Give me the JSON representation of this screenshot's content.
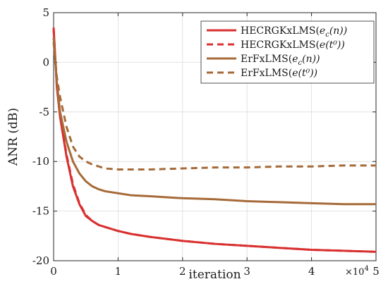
{
  "chart_data": {
    "type": "line",
    "title": "",
    "xlabel": "iteration",
    "ylabel": "ANR (dB)",
    "x_multiplier": "×10^4",
    "x_multiplier_base": "×10",
    "x_multiplier_exp": "4",
    "xlim": [
      0,
      5
    ],
    "ylim": [
      -20,
      5
    ],
    "xticks": [
      0,
      1,
      2,
      3,
      4,
      5
    ],
    "yticks": [
      -20,
      -15,
      -10,
      -5,
      0,
      5
    ],
    "xtick_labels": [
      "0",
      "1",
      "2",
      "3",
      "4",
      "5"
    ],
    "ytick_labels": [
      "-20",
      "-15",
      "-10",
      "-5",
      "0",
      "5"
    ],
    "grid": true,
    "legend_position": "top-right",
    "series": [
      {
        "name": "HECRGKxLMS(e_c(n))",
        "legend_base": "HECRGKxLMS(",
        "legend_math": "e",
        "legend_sub": "c",
        "legend_tail": "(n))",
        "color": "#d93030",
        "dash": "solid",
        "x": [
          0,
          0.05,
          0.1,
          0.2,
          0.3,
          0.4,
          0.5,
          0.6,
          0.7,
          0.8,
          1.0,
          1.2,
          1.5,
          2.0,
          2.5,
          3.0,
          3.5,
          4.0,
          4.5,
          5.0
        ],
        "y": [
          3.5,
          -2.5,
          -5.5,
          -9.5,
          -12.5,
          -14.3,
          -15.5,
          -16.0,
          -16.4,
          -16.6,
          -17.0,
          -17.3,
          -17.6,
          -18.0,
          -18.3,
          -18.5,
          -18.7,
          -18.9,
          -19.0,
          -19.1
        ]
      },
      {
        "name": "HECRGKxLMS(e(t^0))",
        "legend_base": "HECRGKxLMS(",
        "legend_math": "e",
        "legend_sub": "",
        "legend_tail": "(t⁰))",
        "color": "#d93030",
        "dash": "dashed",
        "x": [
          0,
          0.05,
          0.1,
          0.2,
          0.3,
          0.4,
          0.5,
          0.6,
          0.7,
          0.8,
          1.0,
          1.2,
          1.5,
          2.0,
          2.5,
          3.0,
          3.5,
          4.0,
          4.5,
          5.0
        ],
        "y": [
          3.3,
          -2.3,
          -5.3,
          -9.3,
          -12.3,
          -14.2,
          -15.4,
          -16.0,
          -16.4,
          -16.6,
          -17.0,
          -17.3,
          -17.6,
          -18.0,
          -18.3,
          -18.5,
          -18.7,
          -18.9,
          -19.0,
          -19.1
        ]
      },
      {
        "name": "ErFxLMS(e_c(n))",
        "legend_base": "ErFxLMS(",
        "legend_math": "e",
        "legend_sub": "c",
        "legend_tail": "(n))",
        "color": "#a66a38",
        "dash": "solid",
        "x": [
          0,
          0.05,
          0.1,
          0.2,
          0.3,
          0.4,
          0.5,
          0.6,
          0.7,
          0.8,
          1.0,
          1.2,
          1.5,
          2.0,
          2.5,
          3.0,
          3.5,
          4.0,
          4.5,
          5.0
        ],
        "y": [
          2.5,
          -2.0,
          -5.0,
          -8.0,
          -10.0,
          -11.2,
          -12.0,
          -12.5,
          -12.8,
          -13.0,
          -13.2,
          -13.4,
          -13.5,
          -13.7,
          -13.8,
          -14.0,
          -14.1,
          -14.2,
          -14.3,
          -14.3
        ]
      },
      {
        "name": "ErFxLMS(e(t^0))",
        "legend_base": "ErFxLMS(",
        "legend_math": "e",
        "legend_sub": "",
        "legend_tail": "(t⁰))",
        "color": "#a66a38",
        "dash": "dashed",
        "x": [
          0,
          0.05,
          0.1,
          0.2,
          0.3,
          0.4,
          0.5,
          0.6,
          0.7,
          0.8,
          1.0,
          1.2,
          1.5,
          2.0,
          2.5,
          3.0,
          3.5,
          4.0,
          4.5,
          5.0
        ],
        "y": [
          2.0,
          -1.5,
          -3.5,
          -6.5,
          -8.5,
          -9.5,
          -10.0,
          -10.3,
          -10.5,
          -10.7,
          -10.8,
          -10.8,
          -10.8,
          -10.7,
          -10.6,
          -10.6,
          -10.5,
          -10.5,
          -10.4,
          -10.4
        ]
      }
    ]
  }
}
